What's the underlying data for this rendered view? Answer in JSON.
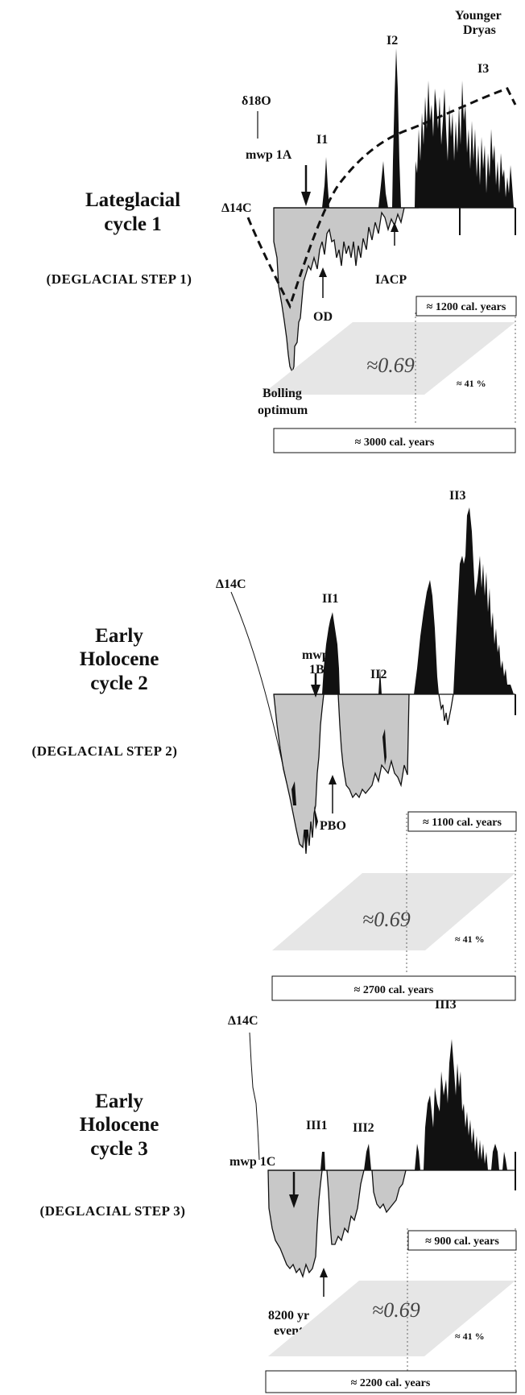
{
  "cycles": [
    {
      "title_lines": [
        "Lateglacial",
        "cycle 1"
      ],
      "step": "(DEGLACIAL  STEP 1)",
      "label_d14c": "Δ14C",
      "label_d18o": "δ18O",
      "label_mwp": "mwp 1A",
      "peaks": [
        "I1",
        "I2",
        "I3"
      ],
      "label_younger": [
        "Younger",
        "Dryas"
      ],
      "label_iacp": "IACP",
      "label_od": "OD",
      "label_optimum": [
        "Bolling",
        "optimum"
      ],
      "ratio": "≈0.69",
      "percent": "≈ 41 %",
      "box_small": "≈  1200 cal. years",
      "box_big": "≈   3000 cal. years"
    },
    {
      "title_lines": [
        "Early",
        "Holocene",
        "cycle 2"
      ],
      "step": "(DEGLACIAL  STEP 2)",
      "label_d14c": "Δ14C",
      "label_mwp": [
        "mwp",
        "1B"
      ],
      "peaks": [
        "II1",
        "II2",
        "II3"
      ],
      "label_pbo": "PBO",
      "ratio": "≈0.69",
      "percent": "≈ 41 %",
      "box_small": "≈  1100 cal. years",
      "box_big": "≈   2700 cal. years"
    },
    {
      "title_lines": [
        "Early",
        "Holocene",
        "cycle 3"
      ],
      "step": "(DEGLACIAL  STEP 3)",
      "label_d14c": "Δ14C",
      "label_mwp": "mwp 1C",
      "peaks": [
        "III1",
        "III2",
        "III3"
      ],
      "label_event": [
        "8200 yr",
        "event"
      ],
      "ratio": "≈0.69",
      "percent": "≈ 41 %",
      "box_small": "≈  900 cal. years",
      "box_big": "≈  2200 cal. years"
    }
  ]
}
